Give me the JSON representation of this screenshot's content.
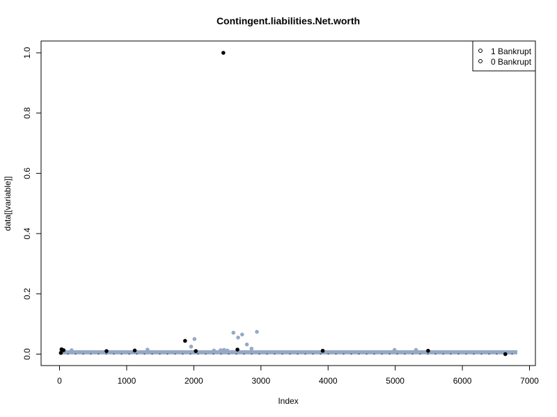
{
  "chart_data": {
    "type": "scatter",
    "title": "Contingent.liabilities.Net.worth",
    "xlabel": "Index",
    "ylabel": "data[[variable]]",
    "xlim": [
      0,
      7000
    ],
    "ylim": [
      0,
      1.0
    ],
    "x_ticks": [
      0,
      1000,
      2000,
      3000,
      4000,
      5000,
      6000,
      7000
    ],
    "y_ticks": [
      0.0,
      0.2,
      0.4,
      0.6,
      0.8,
      1.0
    ],
    "x_tick_labels": [
      "0",
      "1000",
      "2000",
      "3000",
      "4000",
      "5000",
      "6000",
      "7000"
    ],
    "y_tick_labels": [
      "0.0",
      "0.2",
      "0.4",
      "0.6",
      "0.8",
      "1.0"
    ],
    "legend": {
      "position": "top-right",
      "entries": [
        {
          "label": "1 Bankrupt",
          "symbol": "o"
        },
        {
          "label": "0 Bankrupt",
          "symbol": "o"
        }
      ]
    },
    "colors": {
      "bankrupt_1": "#000000",
      "bankrupt_0": "#97a8c6"
    },
    "baseline": {
      "x_range": [
        0,
        6819
      ],
      "typical_value": 0.006
    },
    "series": [
      {
        "name": "0 Bankrupt",
        "points": [
          {
            "x": 1960,
            "y": 0.025
          },
          {
            "x": 2010,
            "y": 0.05
          },
          {
            "x": 2590,
            "y": 0.071
          },
          {
            "x": 2660,
            "y": 0.055
          },
          {
            "x": 2720,
            "y": 0.065
          },
          {
            "x": 2790,
            "y": 0.032
          },
          {
            "x": 2860,
            "y": 0.018
          },
          {
            "x": 2940,
            "y": 0.074
          },
          {
            "x": 1310,
            "y": 0.015
          },
          {
            "x": 4990,
            "y": 0.014
          },
          {
            "x": 5310,
            "y": 0.014
          },
          {
            "x": 180,
            "y": 0.013
          },
          {
            "x": 2300,
            "y": 0.012
          },
          {
            "x": 2450,
            "y": 0.014
          },
          {
            "x": 2400,
            "y": 0.013
          },
          {
            "x": 2500,
            "y": 0.012
          }
        ]
      },
      {
        "name": "1 Bankrupt",
        "points": [
          {
            "x": 2440,
            "y": 1.0
          },
          {
            "x": 1870,
            "y": 0.044
          },
          {
            "x": 30,
            "y": 0.016
          },
          {
            "x": 60,
            "y": 0.013
          },
          {
            "x": 1120,
            "y": 0.012
          },
          {
            "x": 2650,
            "y": 0.015
          },
          {
            "x": 3920,
            "y": 0.011
          },
          {
            "x": 5490,
            "y": 0.011
          },
          {
            "x": 6640,
            "y": 0.0
          },
          {
            "x": 20,
            "y": 0.004
          },
          {
            "x": 700,
            "y": 0.01
          },
          {
            "x": 2030,
            "y": 0.01
          }
        ]
      }
    ]
  }
}
